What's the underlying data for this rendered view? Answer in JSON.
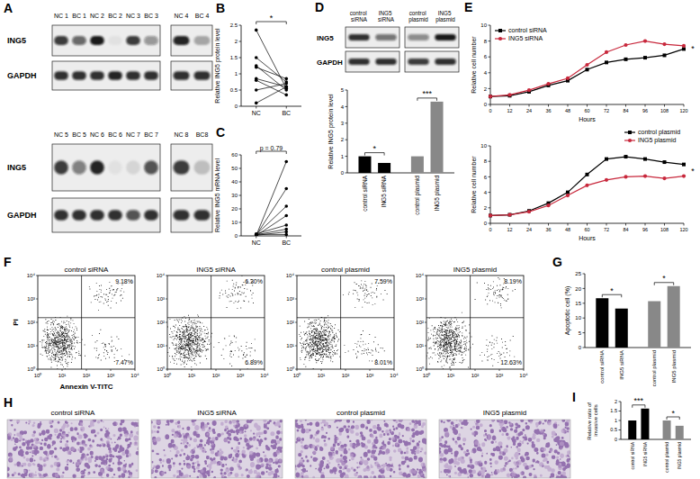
{
  "panel_labels": [
    "A",
    "B",
    "C",
    "D",
    "E",
    "F",
    "G",
    "H",
    "I"
  ],
  "blots": [
    {
      "lanes": [
        [
          "NC 1",
          "BC 1",
          "NC 2",
          "BC 2",
          "NC 3",
          "BC 3"
        ],
        [
          "NC 4",
          "BC 4"
        ]
      ],
      "rows": [
        {
          "label": "ING5",
          "bands": [
            [
              0.8,
              0.6,
              0.95,
              0.05,
              0.8,
              0.4
            ],
            [
              0.9,
              0.3
            ]
          ]
        },
        {
          "label": "GAPDH",
          "bands": [
            [
              0.85,
              0.85,
              0.85,
              0.9,
              0.85,
              0.85
            ],
            [
              0.85,
              0.85
            ]
          ]
        }
      ]
    },
    {
      "lanes": [
        [
          "NC 5",
          "BC 5",
          "NC 6",
          "BC 6",
          "NC 7",
          "BC 7"
        ],
        [
          "NC 8",
          "BC8"
        ]
      ],
      "rows": [
        {
          "label": "ING5",
          "bands": [
            [
              0.8,
              0.5,
              0.9,
              0.05,
              0.1,
              0.7
            ],
            [
              0.8,
              0.2
            ]
          ]
        },
        {
          "label": "GAPDH",
          "bands": [
            [
              0.85,
              0.85,
              0.85,
              0.85,
              0.7,
              0.85
            ],
            [
              0.85,
              0.85
            ]
          ]
        }
      ]
    },
    {
      "lanes": [
        [
          "control siRNA",
          "ING5 siRNA"
        ],
        [
          "control plasmid",
          "ING5 plasmid"
        ]
      ],
      "rows": [
        {
          "label": "ING5",
          "bands": [
            [
              0.85,
              0.55
            ],
            [
              0.45,
              0.95
            ]
          ]
        },
        {
          "label": "GAPDH",
          "bands": [
            [
              0.85,
              0.85
            ],
            [
              0.8,
              0.85
            ]
          ]
        }
      ]
    }
  ],
  "chart_data": [
    {
      "type": "paired",
      "categories": [
        "NC",
        "BC"
      ],
      "y_label": "Relative ING5 protein level",
      "ylim": [
        0,
        2.5
      ],
      "yticks": [
        0,
        0.5,
        1,
        1.5,
        2,
        2.5
      ],
      "series": [
        {
          "values": [
            2.35,
            0.55
          ]
        },
        {
          "values": [
            1.5,
            0.75
          ]
        },
        {
          "values": [
            1.25,
            0.5
          ]
        },
        {
          "values": [
            1.2,
            0.85
          ]
        },
        {
          "values": [
            0.85,
            0.6
          ]
        },
        {
          "values": [
            0.8,
            0.35
          ]
        },
        {
          "values": [
            0.5,
            0.7
          ]
        },
        {
          "values": [
            0.1,
            0.6
          ]
        }
      ],
      "annotations": [
        "*"
      ]
    },
    {
      "type": "paired",
      "categories": [
        "NC",
        "BC"
      ],
      "y_label": "Relative ING5 mRNA level",
      "ylim": [
        0,
        60
      ],
      "yticks": [
        0,
        10,
        20,
        30,
        40,
        50,
        60
      ],
      "series": [
        {
          "values": [
            0.3,
            55
          ]
        },
        {
          "values": [
            0.5,
            35
          ]
        },
        {
          "values": [
            1,
            22
          ]
        },
        {
          "values": [
            0.2,
            15
          ]
        },
        {
          "values": [
            1.5,
            8
          ]
        },
        {
          "values": [
            0.8,
            5
          ]
        },
        {
          "values": [
            0.4,
            3
          ]
        },
        {
          "values": [
            1.2,
            1
          ]
        }
      ],
      "annotations": [
        "p = 0.79"
      ]
    },
    {
      "type": "bar",
      "categories": [
        "control siRNA",
        "ING5 siRNA",
        "control plasmid",
        "ING5 plasmid"
      ],
      "values": [
        1,
        0.6,
        1,
        4.3
      ],
      "colors": [
        "#000000",
        "#000000",
        "#888888",
        "#888888"
      ],
      "y_label": "Relative ING5 protein level",
      "ylim": [
        0,
        5
      ],
      "yticks": [
        0,
        1,
        2,
        3,
        4,
        5
      ],
      "annotations": [
        "*",
        "***"
      ]
    },
    {
      "type": "line",
      "x": [
        0,
        12,
        24,
        36,
        48,
        60,
        72,
        84,
        96,
        108,
        120
      ],
      "xlim": [
        0,
        120
      ],
      "xticks": [
        0,
        12,
        24,
        36,
        48,
        60,
        72,
        84,
        96,
        108,
        120
      ],
      "ylim": [
        0,
        10
      ],
      "yticks": [
        0,
        2,
        4,
        6,
        8,
        10
      ],
      "x_label": "Hours",
      "y_label": "Relative cell number",
      "legend": "upper left",
      "series": [
        {
          "name": "control siRNA",
          "color": "#000000",
          "marker": "square",
          "values": [
            1,
            1.1,
            1.6,
            2.4,
            3.0,
            4.4,
            5.3,
            5.7,
            5.9,
            6.2,
            7.0
          ]
        },
        {
          "name": "ING5 siRNA",
          "color": "#c8283c",
          "marker": "circle",
          "values": [
            1,
            1.2,
            1.8,
            2.6,
            3.3,
            5.0,
            6.6,
            7.5,
            8.0,
            7.6,
            7.4
          ]
        }
      ],
      "annotations": [
        "*"
      ]
    },
    {
      "type": "line",
      "x": [
        0,
        12,
        24,
        36,
        48,
        60,
        72,
        84,
        96,
        108,
        120
      ],
      "xlim": [
        0,
        120
      ],
      "xticks": [
        0,
        12,
        24,
        36,
        48,
        60,
        72,
        84,
        96,
        108,
        120
      ],
      "ylim": [
        0,
        10
      ],
      "yticks": [
        0,
        2,
        4,
        6,
        8,
        10
      ],
      "x_label": "Hours",
      "y_label": "Relative cell number",
      "legend": "upper right",
      "series": [
        {
          "name": "control plasmid",
          "color": "#000000",
          "marker": "square",
          "values": [
            1,
            1.1,
            1.6,
            2.6,
            4.0,
            6.3,
            8.3,
            8.6,
            8.3,
            7.9,
            7.6
          ]
        },
        {
          "name": "ING5 plasmid",
          "color": "#c8283c",
          "marker": "circle",
          "values": [
            1,
            1.1,
            1.5,
            2.3,
            3.6,
            4.9,
            5.6,
            6.0,
            6.1,
            5.8,
            6.1
          ]
        }
      ],
      "annotations": [
        "*"
      ]
    },
    {
      "type": "bar",
      "categories": [
        "control siRNA",
        "ING5 siRNA",
        "control plasmid",
        "ING5 plasmid"
      ],
      "values": [
        16.7,
        13.2,
        15.7,
        20.8
      ],
      "colors": [
        "#000000",
        "#000000",
        "#888888",
        "#888888"
      ],
      "y_label": "Apoptotic cell (%)",
      "ylim": [
        0,
        25
      ],
      "yticks": [
        0,
        5,
        10,
        15,
        20,
        25
      ],
      "annotations": [
        "*",
        "*"
      ]
    },
    {
      "type": "bar",
      "categories": [
        "control siRNA",
        "ING5 siRNA",
        "control plasmid",
        "ING5 plasmid"
      ],
      "values": [
        1,
        1.63,
        1,
        0.72
      ],
      "colors": [
        "#000000",
        "#000000",
        "#888888",
        "#888888"
      ],
      "y_label": "Relative ratio of invasive cells",
      "ylim": [
        0,
        2
      ],
      "yticks": [
        0,
        0.5,
        1,
        1.5,
        2
      ],
      "annotations": [
        "***",
        "*"
      ]
    }
  ],
  "flow": {
    "y_label": "PI",
    "x_label": "Annexin V-TITC",
    "ticks": [
      "10⁰",
      "10¹",
      "10²",
      "10³",
      "10⁴"
    ],
    "plots": [
      {
        "title": "control siRNA",
        "upper_right": "9.18%",
        "lower_right": "7.47%"
      },
      {
        "title": "ING5 siRNA",
        "upper_right": "6.30%",
        "lower_right": "6.89%"
      },
      {
        "title": "control plasmid",
        "upper_right": "7.59%",
        "lower_right": "8.01%"
      },
      {
        "title": "ING5 plasmid",
        "upper_right": "8.19%",
        "lower_right": "12.63%"
      }
    ]
  },
  "invasion_images": {
    "titles": [
      "control siRNA",
      "ING5 siRNA",
      "control plasmid",
      "ING5 plasmid"
    ]
  }
}
